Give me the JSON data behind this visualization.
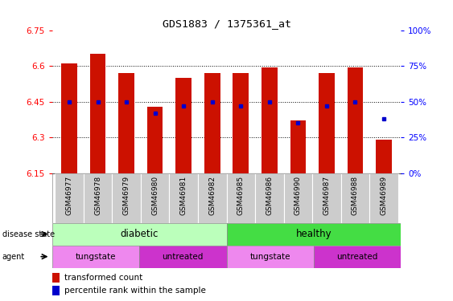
{
  "title": "GDS1883 / 1375361_at",
  "samples": [
    "GSM46977",
    "GSM46978",
    "GSM46979",
    "GSM46980",
    "GSM46981",
    "GSM46982",
    "GSM46985",
    "GSM46986",
    "GSM46990",
    "GSM46987",
    "GSM46988",
    "GSM46989"
  ],
  "transformed_count": [
    6.61,
    6.65,
    6.57,
    6.43,
    6.55,
    6.57,
    6.57,
    6.595,
    6.37,
    6.57,
    6.595,
    6.29
  ],
  "percentile_rank": [
    50,
    50,
    50,
    42,
    47,
    50,
    47,
    50,
    35,
    47,
    50,
    38
  ],
  "ylim_left": [
    6.15,
    6.75
  ],
  "ylim_right": [
    0,
    100
  ],
  "yticks_left": [
    6.15,
    6.3,
    6.45,
    6.6,
    6.75
  ],
  "ytick_labels_left": [
    "6.15",
    "6.3",
    "6.45",
    "6.6",
    "6.75"
  ],
  "yticks_right": [
    0,
    25,
    50,
    75,
    100
  ],
  "ytick_labels_right": [
    "0%",
    "25%",
    "50%",
    "75%",
    "100%"
  ],
  "bar_color": "#cc1100",
  "dot_color": "#0000cc",
  "baseline": 6.15,
  "disease_diabetic_color": "#bbffbb",
  "disease_healthy_color": "#44dd44",
  "agent_tungstate_color": "#ee88ee",
  "agent_untreated_color": "#cc33cc",
  "label_bg_color": "#cccccc",
  "bg_color": "#ffffff"
}
